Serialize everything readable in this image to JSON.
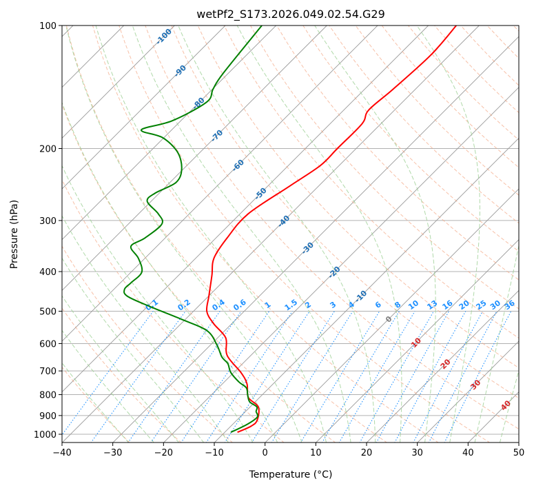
{
  "chart_data": {
    "type": "line",
    "subtype": "skew-t log-p",
    "title": "wetPf2_S173.2026.049.02.54.G29",
    "xlabel": "Temperature (°C)",
    "ylabel": "Pressure (hPa)",
    "xlim": [
      -40,
      50
    ],
    "ylim": [
      1048,
      100
    ],
    "x_ticks": [
      "−40",
      "−30",
      "−20",
      "−10",
      "0",
      "10",
      "20",
      "30",
      "40",
      "50"
    ],
    "x_tick_values": [
      -40,
      -30,
      -20,
      -10,
      0,
      10,
      20,
      30,
      40,
      50
    ],
    "y_ticks": [
      "100",
      "200",
      "300",
      "400",
      "500",
      "600",
      "700",
      "800",
      "900",
      "1000"
    ],
    "y_tick_values": [
      100,
      200,
      300,
      400,
      500,
      600,
      700,
      800,
      900,
      1000
    ],
    "grid": true,
    "colors": {
      "temperature": "#ff0000",
      "dewpoint": "#008000",
      "isotherm": "#999999",
      "dry_adiabat": "#f4a582",
      "moist_adiabat": "#9ccf94",
      "mixing_ratio": "#1e90ff",
      "isotherm_label_cold": "#1f6fb4",
      "isotherm_label_zero": "#808080",
      "isotherm_label_warm": "#d62728"
    },
    "isotherm_labels": [
      "-100",
      "-90",
      "-80",
      "-70",
      "-60",
      "-50",
      "-40",
      "-30",
      "-20",
      "-10",
      "0",
      "10",
      "20",
      "30",
      "40"
    ],
    "isotherm_label_values": [
      -100,
      -90,
      -80,
      -70,
      -60,
      -50,
      -40,
      -30,
      -20,
      -10,
      0,
      10,
      20,
      30,
      40
    ],
    "mixing_ratio_labels": [
      "0.1",
      "0.2",
      "0.4",
      "0.6",
      "1",
      "1.5",
      "2",
      "3",
      "4",
      "6",
      "8",
      "10",
      "13",
      "16",
      "20",
      "25",
      "30",
      "36"
    ],
    "mixing_ratio_values": [
      0.1,
      0.2,
      0.4,
      0.6,
      1,
      1.5,
      2,
      3,
      4,
      6,
      8,
      10,
      13,
      16,
      20,
      25,
      30,
      36
    ],
    "series": [
      {
        "name": "Temperature",
        "pressure": [
          989,
          955,
          923,
          857,
          813,
          752,
          706,
          641,
          581,
          537,
          501,
          460,
          409,
          371,
          331,
          289,
          247,
          220,
          200,
          174,
          161,
          143,
          118,
          100
        ],
        "values": [
          -7.5,
          -6.0,
          -6.0,
          -8.4,
          -12.2,
          -15.2,
          -18.6,
          -24.7,
          -28.4,
          -33.5,
          -37.3,
          -39.9,
          -43.4,
          -46.4,
          -47.8,
          -48.4,
          -45.7,
          -43.7,
          -43.7,
          -43.7,
          -45.1,
          -44.4,
          -43.7,
          -44.5
        ]
      },
      {
        "name": "Dewpoint",
        "pressure": [
          989,
          944,
          907,
          880,
          857,
          833,
          802,
          770,
          745,
          706,
          672,
          647,
          604,
          558,
          524,
          489,
          460,
          442,
          426,
          401,
          371,
          347,
          331,
          306,
          289,
          269,
          257,
          242,
          224,
          204,
          188,
          180,
          171,
          154,
          143,
          131,
          100
        ],
        "values": [
          -8.8,
          -7.1,
          -6.6,
          -7.9,
          -8.7,
          -11.1,
          -12.8,
          -14.5,
          -17.1,
          -20.6,
          -22.9,
          -25.4,
          -28.8,
          -33.5,
          -40.6,
          -49.0,
          -55.9,
          -57.9,
          -57.9,
          -57.9,
          -61.3,
          -65.1,
          -64.0,
          -63.4,
          -66.1,
          -70.8,
          -70.8,
          -68.8,
          -70.4,
          -74.5,
          -80.3,
          -86.0,
          -81.7,
          -78.6,
          -79.9,
          -81.0,
          -82.8
        ]
      }
    ]
  }
}
